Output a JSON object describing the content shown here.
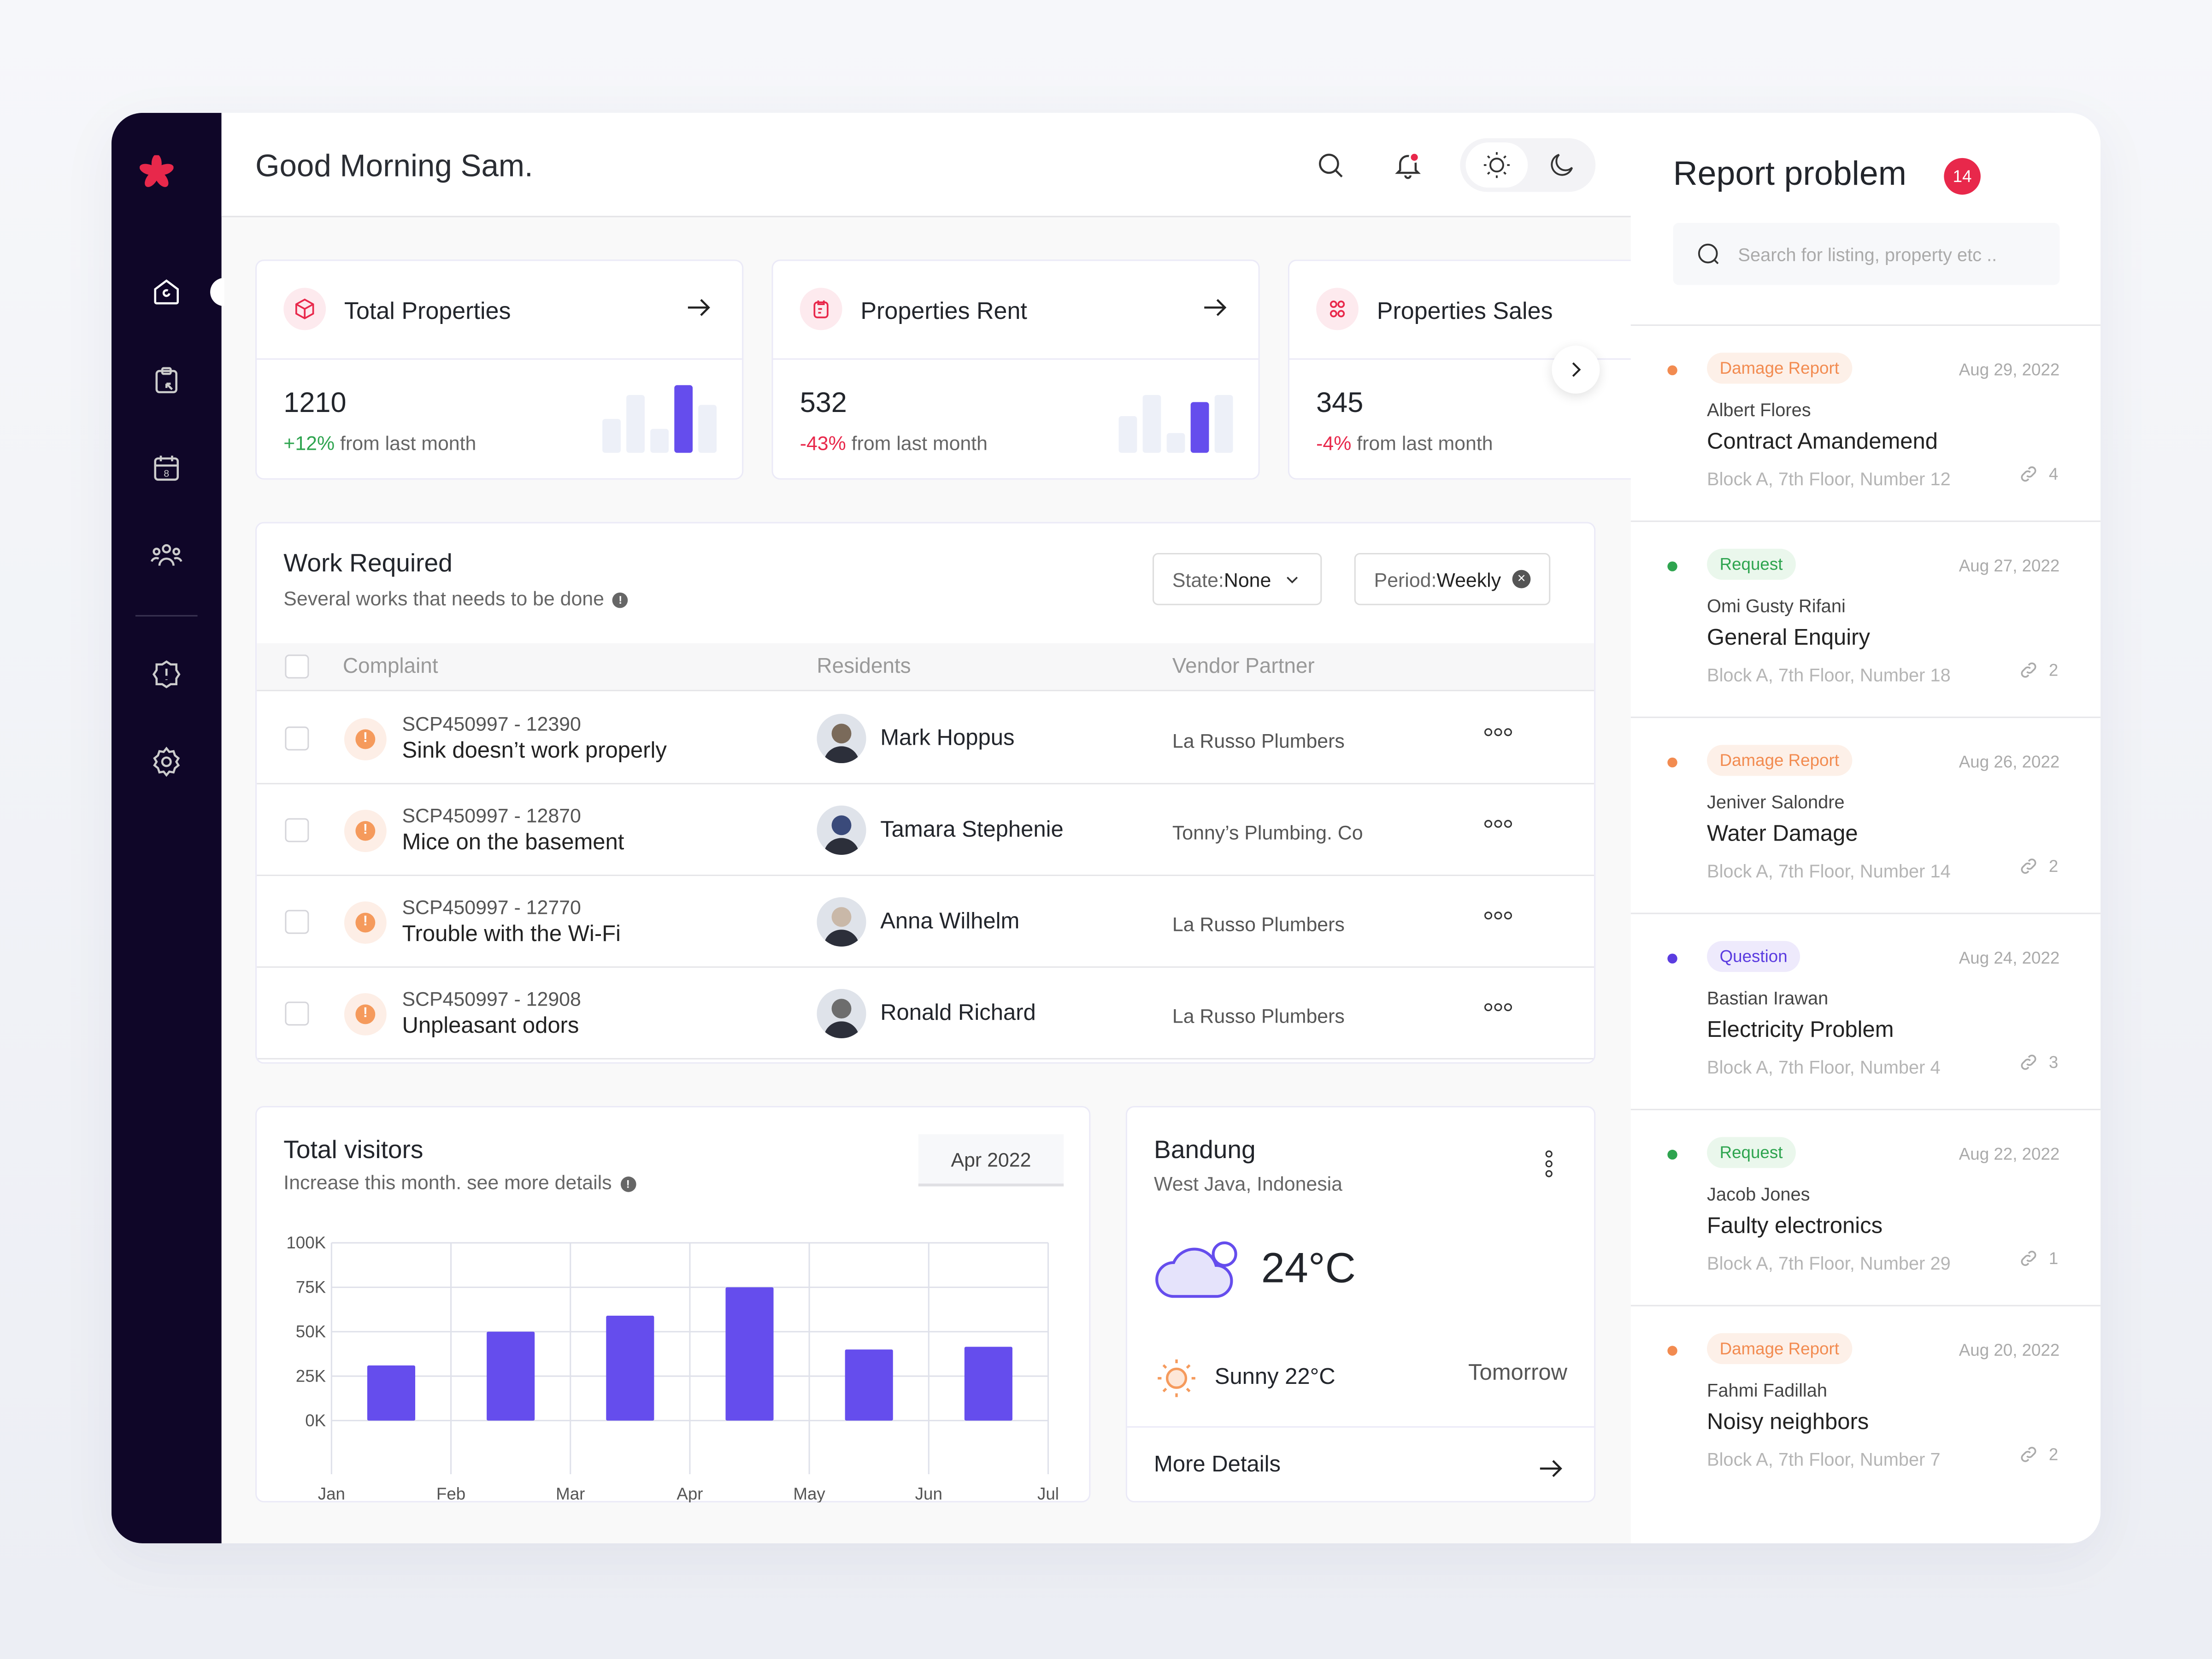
{
  "header": {
    "greeting": "Good Morning Sam."
  },
  "colors": {
    "sidebar": "#0f0628",
    "brand": "#e8284b",
    "accent": "#654ded",
    "positive": "#2ea44f",
    "negative": "#e8284b",
    "damage": "#f28b50",
    "request": "#2ea44f",
    "question": "#5b3ce0"
  },
  "sidebar": {
    "items": [
      {
        "icon": "home-icon",
        "active": true
      },
      {
        "icon": "clipboard-icon"
      },
      {
        "icon": "calendar-icon"
      },
      {
        "icon": "users-icon"
      },
      {
        "icon": "alert-icon"
      },
      {
        "icon": "settings-icon"
      }
    ]
  },
  "stats": [
    {
      "title": "Total Properties",
      "value": "1210",
      "change": "+12%",
      "change_suffix": " from last month",
      "trend": "up",
      "bars": [
        0.5,
        0.85,
        0.35,
        1,
        0.7
      ],
      "highlight": 3
    },
    {
      "title": "Properties Rent",
      "value": "532",
      "change": "-43%",
      "change_suffix": " from last month",
      "trend": "down",
      "bars": [
        0.55,
        0.85,
        0.3,
        0.75,
        0.85
      ],
      "highlight": 3
    },
    {
      "title": "Properties Sales",
      "value": "345",
      "change": "-4%",
      "change_suffix": " from last month",
      "trend": "down"
    }
  ],
  "work": {
    "title": "Work Required",
    "subtitle": "Several works that needs to be done",
    "state_label": "State: ",
    "state_value": "None",
    "period_label": "Period: ",
    "period_value": "Weekly",
    "columns": [
      "Complaint",
      "Residents",
      "Vendor Partner"
    ],
    "rows": [
      {
        "code": "SCP450997 - 12390",
        "desc": "Sink doesn’t work properly",
        "resident": "Mark Hoppus",
        "vendor": "La Russo Plumbers"
      },
      {
        "code": "SCP450997 - 12870",
        "desc": "Mice on the basement",
        "resident": "Tamara Stephenie",
        "vendor": "Tonny’s Plumbing. Co"
      },
      {
        "code": "SCP450997 - 12770",
        "desc": "Trouble with the Wi-Fi",
        "resident": "Anna Wilhelm",
        "vendor": "La Russo Plumbers"
      },
      {
        "code": "SCP450997 - 12908",
        "desc": "Unpleasant odors",
        "resident": "Ronald Richard",
        "vendor": "La Russo Plumbers"
      }
    ]
  },
  "visitors": {
    "title": "Total visitors",
    "subtitle": "Increase this month. see more details",
    "period": "Apr 2022"
  },
  "chart_data": {
    "type": "bar",
    "title": "Total visitors",
    "x_ticks": [
      "Jan",
      "Feb",
      "Mar",
      "Apr",
      "May",
      "Jun",
      "Jul"
    ],
    "categories": [
      "Jan",
      "Feb",
      "Mar",
      "Apr",
      "May",
      "Jun"
    ],
    "values": [
      31000,
      50000,
      59000,
      75000,
      40000,
      41500
    ],
    "y_ticks": [
      "100K",
      "75K",
      "50K",
      "25K",
      "0K"
    ],
    "ylim": [
      0,
      100000
    ],
    "grid": true,
    "color": "#654ded"
  },
  "weather": {
    "city": "Bandung",
    "region": "West Java, Indonesia",
    "temp": "24°C",
    "forecast": "Sunny 22°C",
    "tomorrow": "Tomorrow",
    "more": "More Details"
  },
  "reports": {
    "title": "Report problem",
    "count": "14",
    "search_placeholder": "Search for listing, property etc ..",
    "items": [
      {
        "type": "Damage Report",
        "kind": "damage",
        "date": "Aug 29, 2022",
        "name": "Albert Flores",
        "subject": "Contract Amandemend",
        "location": "Block A, 7th Floor, Number 12",
        "attachments": "4"
      },
      {
        "type": "Request",
        "kind": "request",
        "date": "Aug 27, 2022",
        "name": "Omi Gusty Rifani",
        "subject": "General Enquiry",
        "location": "Block A, 7th Floor, Number 18",
        "attachments": "2"
      },
      {
        "type": "Damage Report",
        "kind": "damage",
        "date": "Aug 26, 2022",
        "name": "Jeniver Salondre",
        "subject": "Water Damage",
        "location": "Block A, 7th Floor, Number 14",
        "attachments": "2"
      },
      {
        "type": "Question",
        "kind": "question",
        "date": "Aug 24, 2022",
        "name": "Bastian Irawan",
        "subject": "Electricity Problem",
        "location": "Block A, 7th Floor, Number 4",
        "attachments": "3"
      },
      {
        "type": "Request",
        "kind": "request",
        "date": "Aug 22, 2022",
        "name": "Jacob Jones",
        "subject": "Faulty electronics",
        "location": "Block A, 7th Floor, Number 29",
        "attachments": "1"
      },
      {
        "type": "Damage Report",
        "kind": "damage",
        "date": "Aug 20, 2022",
        "name": "Fahmi Fadillah",
        "subject": "Noisy neighbors",
        "location": "Block A, 7th Floor, Number 7",
        "attachments": "2"
      }
    ]
  }
}
